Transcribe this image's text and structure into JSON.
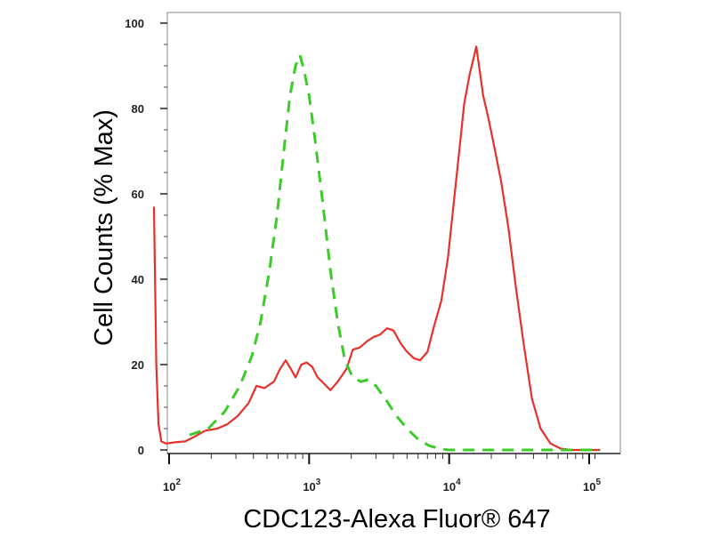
{
  "chart_data": {
    "type": "line",
    "title": "",
    "xlabel": "CDC123-Alexa Fluor® 647",
    "ylabel": "Cell Counts (% Max)",
    "x_scale": "log",
    "xlim": [
      77,
      120000
    ],
    "ylim": [
      0,
      100
    ],
    "yticks": [
      0,
      20,
      40,
      60,
      80,
      100
    ],
    "xticks": [
      {
        "value": 100,
        "base": "10",
        "exp": "2"
      },
      {
        "value": 1000,
        "base": "10",
        "exp": "3"
      },
      {
        "value": 10000,
        "base": "10",
        "exp": "4"
      },
      {
        "value": 100000,
        "base": "10",
        "exp": "5"
      }
    ],
    "grid": false,
    "legend": "none",
    "series": [
      {
        "style": "solid",
        "color": "#e8302a",
        "points": [
          [
            78,
            57
          ],
          [
            81,
            20
          ],
          [
            84,
            6
          ],
          [
            88,
            2
          ],
          [
            95,
            1.5
          ],
          [
            110,
            1.8
          ],
          [
            130,
            2
          ],
          [
            150,
            3
          ],
          [
            180,
            4.5
          ],
          [
            220,
            5
          ],
          [
            260,
            6
          ],
          [
            310,
            8
          ],
          [
            370,
            11
          ],
          [
            420,
            15
          ],
          [
            480,
            14.5
          ],
          [
            560,
            16
          ],
          [
            620,
            19
          ],
          [
            680,
            21
          ],
          [
            740,
            19
          ],
          [
            800,
            17
          ],
          [
            880,
            20
          ],
          [
            960,
            20.5
          ],
          [
            1050,
            19.5
          ],
          [
            1150,
            17
          ],
          [
            1280,
            15.5
          ],
          [
            1420,
            14
          ],
          [
            1600,
            16
          ],
          [
            1850,
            19
          ],
          [
            2050,
            23.5
          ],
          [
            2300,
            24
          ],
          [
            2600,
            25.5
          ],
          [
            2900,
            26.5
          ],
          [
            3200,
            27
          ],
          [
            3600,
            28.5
          ],
          [
            4000,
            28
          ],
          [
            4500,
            25
          ],
          [
            5000,
            23
          ],
          [
            5600,
            21.5
          ],
          [
            6200,
            21
          ],
          [
            7000,
            23
          ],
          [
            7800,
            29
          ],
          [
            8800,
            35
          ],
          [
            9800,
            45
          ],
          [
            10800,
            58
          ],
          [
            11800,
            70
          ],
          [
            12800,
            81
          ],
          [
            14000,
            88
          ],
          [
            15000,
            92
          ],
          [
            15600,
            94.5
          ],
          [
            16500,
            89
          ],
          [
            17500,
            83
          ],
          [
            19000,
            78
          ],
          [
            21000,
            71
          ],
          [
            23500,
            63
          ],
          [
            26500,
            52
          ],
          [
            30000,
            38
          ],
          [
            34000,
            25
          ],
          [
            39000,
            12
          ],
          [
            45000,
            5
          ],
          [
            53000,
            1.5
          ],
          [
            63000,
            0.3
          ],
          [
            75000,
            0
          ],
          [
            120000,
            0
          ]
        ]
      },
      {
        "style": "dashed",
        "color": "#3dcb2a",
        "points": [
          [
            140,
            3.5
          ],
          [
            190,
            5
          ],
          [
            250,
            9
          ],
          [
            320,
            15
          ],
          [
            390,
            22
          ],
          [
            450,
            30
          ],
          [
            520,
            42
          ],
          [
            590,
            55
          ],
          [
            660,
            70
          ],
          [
            730,
            83
          ],
          [
            800,
            90
          ],
          [
            860,
            92.5
          ],
          [
            920,
            89
          ],
          [
            1000,
            83
          ],
          [
            1100,
            73
          ],
          [
            1250,
            58
          ],
          [
            1420,
            42
          ],
          [
            1600,
            30
          ],
          [
            1800,
            21
          ],
          [
            2050,
            17
          ],
          [
            2350,
            16
          ],
          [
            2650,
            16.5
          ],
          [
            3000,
            15
          ],
          [
            3500,
            12
          ],
          [
            4200,
            8
          ],
          [
            5000,
            5
          ],
          [
            6000,
            2.5
          ],
          [
            7200,
            1
          ],
          [
            8500,
            0.3
          ],
          [
            10000,
            0
          ],
          [
            120000,
            0
          ]
        ]
      }
    ]
  }
}
